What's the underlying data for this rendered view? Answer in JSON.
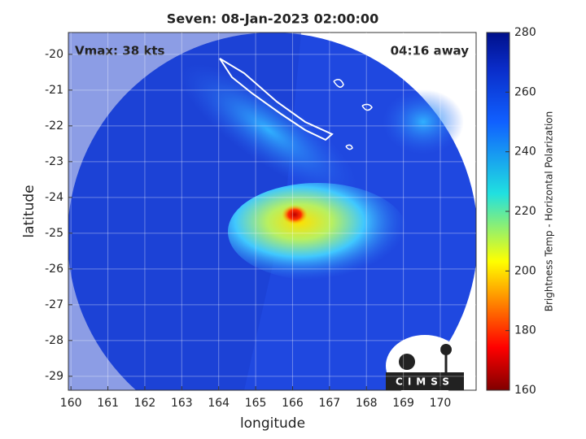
{
  "chart_data": {
    "type": "image",
    "title": "Seven: 08-Jan-2023 02:00:00",
    "annotations": [
      "Vmax: 38 kts",
      "04:16 away"
    ],
    "x_label": "longitude",
    "y_label": "latitude",
    "xlim": [
      159.93,
      170.97
    ],
    "ylim": [
      -29.39,
      -19.39
    ],
    "xticks": [
      160,
      161,
      162,
      163,
      164,
      165,
      166,
      167,
      168,
      169,
      170
    ],
    "yticks": [
      -20,
      -21,
      -22,
      -23,
      -24,
      -25,
      -26,
      -27,
      -28,
      -29
    ],
    "grid": true,
    "colorbar": {
      "label": "Brightness Temp - Horizontal Polarization",
      "lim": [
        160,
        280
      ],
      "ticks": [
        160,
        180,
        200,
        220,
        240,
        260,
        280
      ]
    },
    "logo": "CIMSS"
  }
}
